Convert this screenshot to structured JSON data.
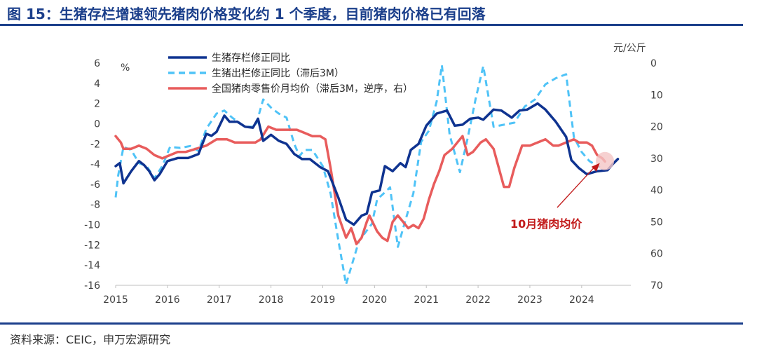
{
  "title": "图 15：生猪存栏增速领先猪肉价格变化约 1 个季度，目前猪肉价格已有回落",
  "source": "资料来源：CEIC，申万宏源研究",
  "chart_data": {
    "type": "line",
    "left_unit": "%",
    "right_unit": "元/公斤",
    "ylim_left": [
      -16,
      6
    ],
    "ylim_right": [
      70,
      0
    ],
    "right_axis_reversed": true,
    "xlim": [
      2015,
      2024.95
    ],
    "left_ticks": [
      "6",
      "4",
      "2",
      "0",
      "-2",
      "-4",
      "-6",
      "-8",
      "-10",
      "-12",
      "-14",
      "-16"
    ],
    "right_ticks": [
      "0",
      "10",
      "20",
      "30",
      "40",
      "50",
      "60",
      "70"
    ],
    "x_ticks": [
      "2015",
      "2016",
      "2017",
      "2018",
      "2019",
      "2020",
      "2021",
      "2022",
      "2023",
      "2024"
    ],
    "legend_position": "top-left",
    "annotation": "10月猪肉均价",
    "series": [
      {
        "name": "生猪存栏修正同比",
        "axis": "left",
        "color": "#0f3390",
        "style": "solid",
        "points": [
          [
            2015.0,
            -4.2
          ],
          [
            2015.08,
            -3.9
          ],
          [
            2015.15,
            -5.9
          ],
          [
            2015.3,
            -4.7
          ],
          [
            2015.45,
            -3.7
          ],
          [
            2015.55,
            -4.1
          ],
          [
            2015.65,
            -4.7
          ],
          [
            2015.75,
            -5.6
          ],
          [
            2015.85,
            -5.0
          ],
          [
            2016.0,
            -3.7
          ],
          [
            2016.2,
            -3.4
          ],
          [
            2016.4,
            -3.4
          ],
          [
            2016.6,
            -3.0
          ],
          [
            2016.75,
            -1.0
          ],
          [
            2016.85,
            -1.2
          ],
          [
            2016.95,
            -0.8
          ],
          [
            2017.1,
            0.8
          ],
          [
            2017.2,
            0.2
          ],
          [
            2017.35,
            0.2
          ],
          [
            2017.5,
            -0.3
          ],
          [
            2017.65,
            -0.4
          ],
          [
            2017.75,
            0.5
          ],
          [
            2017.85,
            -1.7
          ],
          [
            2018.0,
            -1.1
          ],
          [
            2018.15,
            -1.7
          ],
          [
            2018.3,
            -2.0
          ],
          [
            2018.45,
            -3.0
          ],
          [
            2018.6,
            -3.5
          ],
          [
            2018.75,
            -3.5
          ],
          [
            2018.95,
            -4.3
          ],
          [
            2019.1,
            -4.7
          ],
          [
            2019.2,
            -6.0
          ],
          [
            2019.3,
            -7.3
          ],
          [
            2019.45,
            -9.5
          ],
          [
            2019.6,
            -10.0
          ],
          [
            2019.75,
            -9.1
          ],
          [
            2019.85,
            -8.9
          ],
          [
            2019.95,
            -6.8
          ],
          [
            2020.1,
            -6.6
          ],
          [
            2020.2,
            -4.2
          ],
          [
            2020.35,
            -4.7
          ],
          [
            2020.5,
            -3.9
          ],
          [
            2020.6,
            -4.3
          ],
          [
            2020.7,
            -2.6
          ],
          [
            2020.85,
            -2.0
          ],
          [
            2021.0,
            -0.2
          ],
          [
            2021.2,
            1.0
          ],
          [
            2021.4,
            1.3
          ],
          [
            2021.55,
            -0.2
          ],
          [
            2021.7,
            -0.1
          ],
          [
            2021.85,
            0.5
          ],
          [
            2022.0,
            0.6
          ],
          [
            2022.1,
            0.4
          ],
          [
            2022.3,
            1.4
          ],
          [
            2022.45,
            1.3
          ],
          [
            2022.65,
            0.6
          ],
          [
            2022.8,
            1.3
          ],
          [
            2022.95,
            1.4
          ],
          [
            2023.15,
            2.0
          ],
          [
            2023.3,
            1.4
          ],
          [
            2023.5,
            0.2
          ],
          [
            2023.7,
            -1.3
          ],
          [
            2023.8,
            -3.6
          ],
          [
            2023.95,
            -4.4
          ],
          [
            2024.1,
            -5.0
          ],
          [
            2024.3,
            -4.7
          ],
          [
            2024.5,
            -4.6
          ],
          [
            2024.6,
            -4.0
          ],
          [
            2024.7,
            -3.5
          ]
        ]
      },
      {
        "name": "生猪出栏修正同比（滞后3M）",
        "axis": "left",
        "color": "#4fc3f7",
        "style": "dashed",
        "points": [
          [
            2015.0,
            -7.3
          ],
          [
            2015.05,
            -5.1
          ],
          [
            2015.15,
            -2.3
          ],
          [
            2015.3,
            -2.6
          ],
          [
            2015.45,
            -3.9
          ],
          [
            2015.6,
            -4.2
          ],
          [
            2015.75,
            -5.4
          ],
          [
            2015.9,
            -4.2
          ],
          [
            2016.05,
            -2.3
          ],
          [
            2016.25,
            -2.4
          ],
          [
            2016.45,
            -2.2
          ],
          [
            2016.6,
            -2.7
          ],
          [
            2016.75,
            -0.5
          ],
          [
            2016.95,
            1.0
          ],
          [
            2017.1,
            1.3
          ],
          [
            2017.25,
            0.6
          ],
          [
            2017.5,
            -0.3
          ],
          [
            2017.7,
            -0.3
          ],
          [
            2017.85,
            2.4
          ],
          [
            2018.0,
            1.6
          ],
          [
            2018.15,
            1.0
          ],
          [
            2018.3,
            0.6
          ],
          [
            2018.45,
            -2.0
          ],
          [
            2018.55,
            -3.2
          ],
          [
            2018.65,
            -2.6
          ],
          [
            2018.8,
            -2.6
          ],
          [
            2019.0,
            -4.2
          ],
          [
            2019.15,
            -6.9
          ],
          [
            2019.3,
            -11.5
          ],
          [
            2019.45,
            -15.9
          ],
          [
            2019.7,
            -11.6
          ],
          [
            2019.95,
            -9.9
          ],
          [
            2020.05,
            -7.5
          ],
          [
            2020.2,
            -6.8
          ],
          [
            2020.3,
            -6.3
          ],
          [
            2020.45,
            -12.2
          ],
          [
            2020.6,
            -9.5
          ],
          [
            2020.75,
            -6.9
          ],
          [
            2020.9,
            -1.8
          ],
          [
            2021.05,
            -0.7
          ],
          [
            2021.2,
            2.2
          ],
          [
            2021.3,
            5.8
          ],
          [
            2021.45,
            -1.1
          ],
          [
            2021.65,
            -4.8
          ],
          [
            2021.8,
            -1.4
          ],
          [
            2021.95,
            2.4
          ],
          [
            2022.1,
            5.7
          ],
          [
            2022.3,
            -0.3
          ],
          [
            2022.5,
            -0.1
          ],
          [
            2022.7,
            0.1
          ],
          [
            2022.9,
            1.7
          ],
          [
            2023.1,
            2.4
          ],
          [
            2023.3,
            3.9
          ],
          [
            2023.5,
            4.5
          ],
          [
            2023.7,
            4.9
          ],
          [
            2023.85,
            -1.3
          ],
          [
            2024.0,
            -2.8
          ],
          [
            2024.15,
            -3.7
          ],
          [
            2024.35,
            -4.3
          ]
        ]
      },
      {
        "name": "全国猪肉零售价月均价（滞后3M，逆序，右）",
        "axis": "right",
        "color": "#e85c5c",
        "style": "solid",
        "points": [
          [
            2015.0,
            23
          ],
          [
            2015.1,
            25
          ],
          [
            2015.15,
            27
          ],
          [
            2015.3,
            27
          ],
          [
            2015.45,
            26
          ],
          [
            2015.6,
            27
          ],
          [
            2015.75,
            29
          ],
          [
            2015.9,
            30
          ],
          [
            2016.05,
            29
          ],
          [
            2016.2,
            28
          ],
          [
            2016.35,
            28
          ],
          [
            2016.55,
            27
          ],
          [
            2016.75,
            26
          ],
          [
            2016.95,
            24
          ],
          [
            2017.15,
            24
          ],
          [
            2017.3,
            25
          ],
          [
            2017.5,
            25
          ],
          [
            2017.7,
            25
          ],
          [
            2017.8,
            24
          ],
          [
            2017.95,
            20
          ],
          [
            2018.1,
            21
          ],
          [
            2018.3,
            21
          ],
          [
            2018.5,
            21
          ],
          [
            2018.65,
            22
          ],
          [
            2018.8,
            23
          ],
          [
            2018.95,
            23
          ],
          [
            2019.05,
            24
          ],
          [
            2019.15,
            33
          ],
          [
            2019.3,
            48
          ],
          [
            2019.45,
            55
          ],
          [
            2019.55,
            52
          ],
          [
            2019.65,
            57
          ],
          [
            2019.75,
            55
          ],
          [
            2019.85,
            50
          ],
          [
            2019.9,
            48
          ],
          [
            2020.05,
            53
          ],
          [
            2020.15,
            55
          ],
          [
            2020.25,
            56
          ],
          [
            2020.35,
            50
          ],
          [
            2020.45,
            48
          ],
          [
            2020.55,
            50
          ],
          [
            2020.65,
            52
          ],
          [
            2020.75,
            51
          ],
          [
            2020.85,
            52
          ],
          [
            2020.95,
            49
          ],
          [
            2021.05,
            43
          ],
          [
            2021.15,
            38
          ],
          [
            2021.25,
            34
          ],
          [
            2021.35,
            29
          ],
          [
            2021.5,
            27
          ],
          [
            2021.6,
            25
          ],
          [
            2021.7,
            23
          ],
          [
            2021.8,
            29
          ],
          [
            2021.9,
            28
          ],
          [
            2022.05,
            25
          ],
          [
            2022.15,
            24
          ],
          [
            2022.3,
            27
          ],
          [
            2022.4,
            33
          ],
          [
            2022.5,
            39
          ],
          [
            2022.6,
            39
          ],
          [
            2022.7,
            33
          ],
          [
            2022.85,
            26
          ],
          [
            2023.0,
            26
          ],
          [
            2023.15,
            25
          ],
          [
            2023.3,
            24
          ],
          [
            2023.45,
            26
          ],
          [
            2023.55,
            26
          ],
          [
            2023.7,
            25
          ],
          [
            2023.85,
            24
          ],
          [
            2023.95,
            25
          ],
          [
            2024.1,
            25
          ],
          [
            2024.2,
            26
          ],
          [
            2024.3,
            29
          ],
          [
            2024.4,
            30
          ],
          [
            2024.45,
            31
          ]
        ]
      }
    ]
  }
}
